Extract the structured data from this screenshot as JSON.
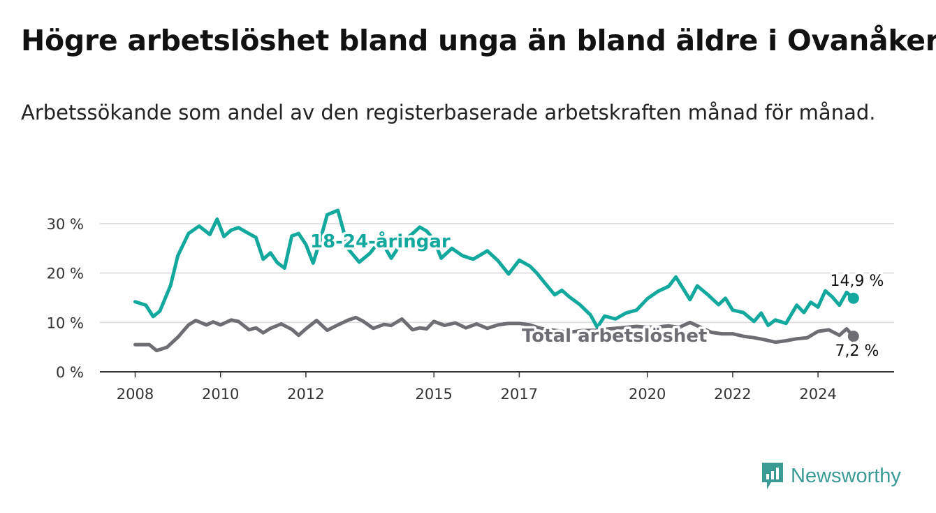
{
  "title": "Högre arbetslöshet bland unga än bland äldre i Ovanåker",
  "subtitle": "Arbetssökande som andel av den registerbaserade arbetskraften månad för månad.",
  "brand": {
    "name": "Newsworthy",
    "icon": "newsworthy-logo-icon"
  },
  "colors": {
    "youth": "#13a89e",
    "total": "#6e6d74",
    "grid": "#d9d9d9",
    "axis": "#333333"
  },
  "chart_data": {
    "type": "line",
    "y_range": [
      0,
      30
    ],
    "y_ticks": [
      0,
      10,
      20,
      30
    ],
    "y_tick_labels": [
      "0 %",
      "10 %",
      "20 %",
      "30 %"
    ],
    "x_ticks": [
      2008,
      2010,
      2012,
      2015,
      2017,
      2020,
      2022,
      2024
    ],
    "x_tick_labels": [
      "2008",
      "2010",
      "2012",
      "2015",
      "2017",
      "2020",
      "2022",
      "2024"
    ],
    "grid": true,
    "series": [
      {
        "name": "18-24-åringar",
        "end_label": "14,9 %",
        "x": [
          2008.0,
          2008.25,
          2008.42,
          2008.58,
          2008.83,
          2009.0,
          2009.25,
          2009.5,
          2009.75,
          2009.92,
          2010.08,
          2010.25,
          2010.42,
          2010.58,
          2010.83,
          2011.0,
          2011.17,
          2011.33,
          2011.5,
          2011.67,
          2011.83,
          2012.0,
          2012.17,
          2012.33,
          2012.5,
          2012.75,
          2013.0,
          2013.25,
          2013.5,
          2013.75,
          2014.0,
          2014.25,
          2014.5,
          2014.67,
          2014.83,
          2015.0,
          2015.17,
          2015.42,
          2015.67,
          2015.92,
          2016.08,
          2016.25,
          2016.5,
          2016.75,
          2017.0,
          2017.25,
          2017.42,
          2017.58,
          2017.83,
          2018.0,
          2018.17,
          2018.42,
          2018.67,
          2018.83,
          2019.0,
          2019.25,
          2019.5,
          2019.75,
          2020.0,
          2020.25,
          2020.5,
          2020.67,
          2020.83,
          2021.0,
          2021.17,
          2021.42,
          2021.67,
          2021.83,
          2022.0,
          2022.25,
          2022.5,
          2022.67,
          2022.83,
          2023.0,
          2023.25,
          2023.5,
          2023.67,
          2023.83,
          2024.0,
          2024.17,
          2024.33,
          2024.5,
          2024.67,
          2024.83
        ],
        "y": [
          14.2,
          13.5,
          11.2,
          12.3,
          17.5,
          23.5,
          28.0,
          29.5,
          27.8,
          30.9,
          27.4,
          28.7,
          29.2,
          28.4,
          27.2,
          22.8,
          24.1,
          22.1,
          21.0,
          27.5,
          28.0,
          25.8,
          22.0,
          26.5,
          31.8,
          32.7,
          24.8,
          22.2,
          24.0,
          26.7,
          23.0,
          26.3,
          28.0,
          29.3,
          28.5,
          26.8,
          23.0,
          25.0,
          23.5,
          22.8,
          23.6,
          24.5,
          22.5,
          19.8,
          22.6,
          21.4,
          19.9,
          18.2,
          15.6,
          16.5,
          15.2,
          13.6,
          11.5,
          9.0,
          11.3,
          10.7,
          11.9,
          12.5,
          14.8,
          16.3,
          17.3,
          19.2,
          17.0,
          14.6,
          17.4,
          15.6,
          13.6,
          14.9,
          12.5,
          12.0,
          10.2,
          11.9,
          9.4,
          10.5,
          9.8,
          13.5,
          12.0,
          14.1,
          13.1,
          16.4,
          15.2,
          13.5,
          16.1,
          14.9
        ]
      },
      {
        "name": "Total arbetslöshet",
        "end_label": "7,2 %",
        "x": [
          2008.0,
          2008.33,
          2008.5,
          2008.75,
          2009.0,
          2009.25,
          2009.42,
          2009.67,
          2009.83,
          2010.0,
          2010.25,
          2010.42,
          2010.67,
          2010.83,
          2011.0,
          2011.17,
          2011.42,
          2011.67,
          2011.83,
          2012.0,
          2012.25,
          2012.5,
          2012.75,
          2013.0,
          2013.17,
          2013.33,
          2013.58,
          2013.83,
          2014.0,
          2014.25,
          2014.5,
          2014.67,
          2014.83,
          2015.0,
          2015.25,
          2015.5,
          2015.75,
          2016.0,
          2016.25,
          2016.5,
          2016.75,
          2017.0,
          2017.25,
          2017.5,
          2017.75,
          2018.0,
          2018.17,
          2018.42,
          2018.67,
          2018.83,
          2019.0,
          2019.25,
          2019.5,
          2019.75,
          2020.0,
          2020.25,
          2020.5,
          2020.75,
          2021.0,
          2021.25,
          2021.5,
          2021.75,
          2022.0,
          2022.25,
          2022.5,
          2022.75,
          2023.0,
          2023.25,
          2023.5,
          2023.75,
          2024.0,
          2024.25,
          2024.5,
          2024.67,
          2024.83
        ],
        "y": [
          5.5,
          5.5,
          4.3,
          5.0,
          7.0,
          9.5,
          10.4,
          9.5,
          10.1,
          9.5,
          10.5,
          10.2,
          8.5,
          8.9,
          7.9,
          8.8,
          9.7,
          8.6,
          7.4,
          8.7,
          10.4,
          8.4,
          9.5,
          10.5,
          11.0,
          10.3,
          8.8,
          9.6,
          9.4,
          10.7,
          8.5,
          8.9,
          8.7,
          10.2,
          9.4,
          9.9,
          8.9,
          9.7,
          8.8,
          9.5,
          9.8,
          9.8,
          9.5,
          8.8,
          8.5,
          8.2,
          8.0,
          8.3,
          8.4,
          8.4,
          8.6,
          8.8,
          9.0,
          9.2,
          9.0,
          9.1,
          9.3,
          9.0,
          10.0,
          9.0,
          8.0,
          7.7,
          7.7,
          7.2,
          6.9,
          6.5,
          6.0,
          6.3,
          6.7,
          6.9,
          8.2,
          8.5,
          7.4,
          8.7,
          7.2
        ]
      }
    ]
  }
}
